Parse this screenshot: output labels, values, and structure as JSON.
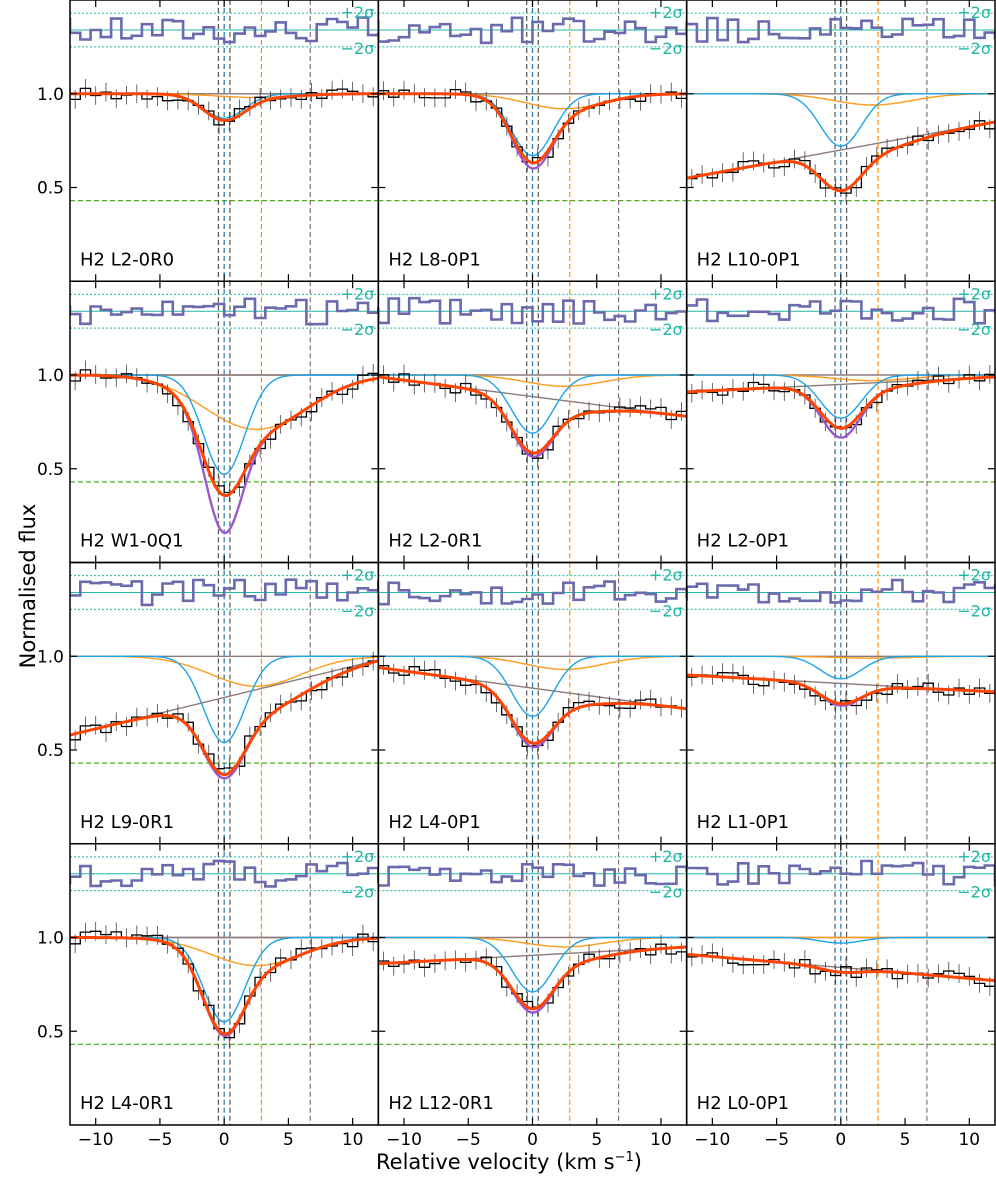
{
  "chart_data": {
    "type": "line",
    "xlabel": "Relative velocity",
    "xlabel_unit": "(km s",
    "xlabel_unit_exp": "−1",
    "ylabel": "Normalised flux",
    "xlim": [
      -12,
      12
    ],
    "ylim": [
      0.0,
      1.5
    ],
    "xticks": [
      -10,
      -5,
      0,
      5,
      10
    ],
    "xtick_labels": [
      "−10",
      "−5",
      "0",
      "5",
      "10"
    ],
    "yticks": [
      0.5,
      1.0
    ],
    "ytick_labels": [
      "0.5",
      "1.0"
    ],
    "layout": {
      "rows": 4,
      "cols": 3
    },
    "residual_labels": [
      "+2σ",
      "−2σ"
    ],
    "vertical_markers": [
      {
        "v": -0.45,
        "color": "#555555"
      },
      {
        "v": 0.0,
        "color": "#1f77b4"
      },
      {
        "v": 0.45,
        "color": "#555555"
      },
      {
        "v": 2.9,
        "color": "#ff8c00"
      },
      {
        "v": 6.7,
        "color": "#8c6d7a"
      }
    ],
    "limit_line": {
      "y": 0.43,
      "color": "#4daf1f"
    },
    "colors": {
      "data": "#000000",
      "total_fit": "#ff4500",
      "alt_fit": "#9b59d0",
      "comp_main": "#1ca4e8",
      "comp_second": "#ff9a1a",
      "continuum": "#8c7b7b",
      "residual": "#6a6aac",
      "sigma": "#22b6a6"
    },
    "panels": [
      {
        "label": "H2 L2-0R0",
        "b_depth": 0.13,
        "b_width": 1.6,
        "o_depth": 0.02,
        "o_width": 3.0,
        "cont": [
          1.0,
          1.0
        ],
        "alt": 0.0
      },
      {
        "label": "H2 L8-0P1",
        "b_depth": 0.33,
        "b_width": 1.6,
        "o_depth": 0.08,
        "o_width": 3.0,
        "cont": [
          1.0,
          1.0
        ],
        "alt": 0.03
      },
      {
        "label": "H2 L10-0P1",
        "b_depth": 0.28,
        "b_width": 1.6,
        "o_depth": 0.06,
        "o_width": 3.0,
        "cont": [
          0.55,
          0.85
        ],
        "alt": 0.0
      },
      {
        "label": "H2 W1-0Q1",
        "b_depth": 0.53,
        "b_width": 1.6,
        "o_depth": 0.29,
        "o_width": 4.0,
        "cont": [
          1.0,
          1.0
        ],
        "alt": 0.2
      },
      {
        "label": "H2 L2-0R1",
        "b_depth": 0.31,
        "b_width": 1.6,
        "o_depth": 0.06,
        "o_width": 3.0,
        "cont": [
          0.99,
          0.78
        ],
        "alt": 0.02
      },
      {
        "label": "H2 L2-0P1",
        "b_depth": 0.23,
        "b_width": 1.6,
        "o_depth": 0.03,
        "o_width": 3.0,
        "cont": [
          0.91,
          0.99
        ],
        "alt": 0.05
      },
      {
        "label": "H2 L9-0R1",
        "b_depth": 0.46,
        "b_width": 1.6,
        "o_depth": 0.16,
        "o_width": 3.5,
        "cont": [
          0.58,
          0.98
        ],
        "alt": 0.02
      },
      {
        "label": "H2 L4-0P1",
        "b_depth": 0.32,
        "b_width": 1.6,
        "o_depth": 0.07,
        "o_width": 3.0,
        "cont": [
          0.94,
          0.72
        ],
        "alt": 0.02
      },
      {
        "label": "H2 L1-0P1",
        "b_depth": 0.12,
        "b_width": 1.6,
        "o_depth": 0.01,
        "o_width": 3.0,
        "cont": [
          0.9,
          0.81
        ],
        "alt": 0.01
      },
      {
        "label": "H2 L4-0R1",
        "b_depth": 0.45,
        "b_width": 1.6,
        "o_depth": 0.15,
        "o_width": 3.5,
        "cont": [
          1.0,
          1.0
        ],
        "alt": 0.01
      },
      {
        "label": "H2 L12-0R1",
        "b_depth": 0.29,
        "b_width": 1.6,
        "o_depth": 0.05,
        "o_width": 3.0,
        "cont": [
          0.86,
          0.95
        ],
        "alt": 0.02
      },
      {
        "label": "H2 L0-0P1",
        "b_depth": 0.03,
        "b_width": 1.6,
        "o_depth": 0.0,
        "o_width": 3.0,
        "cont": [
          0.91,
          0.77
        ],
        "alt": 0.0
      }
    ]
  }
}
